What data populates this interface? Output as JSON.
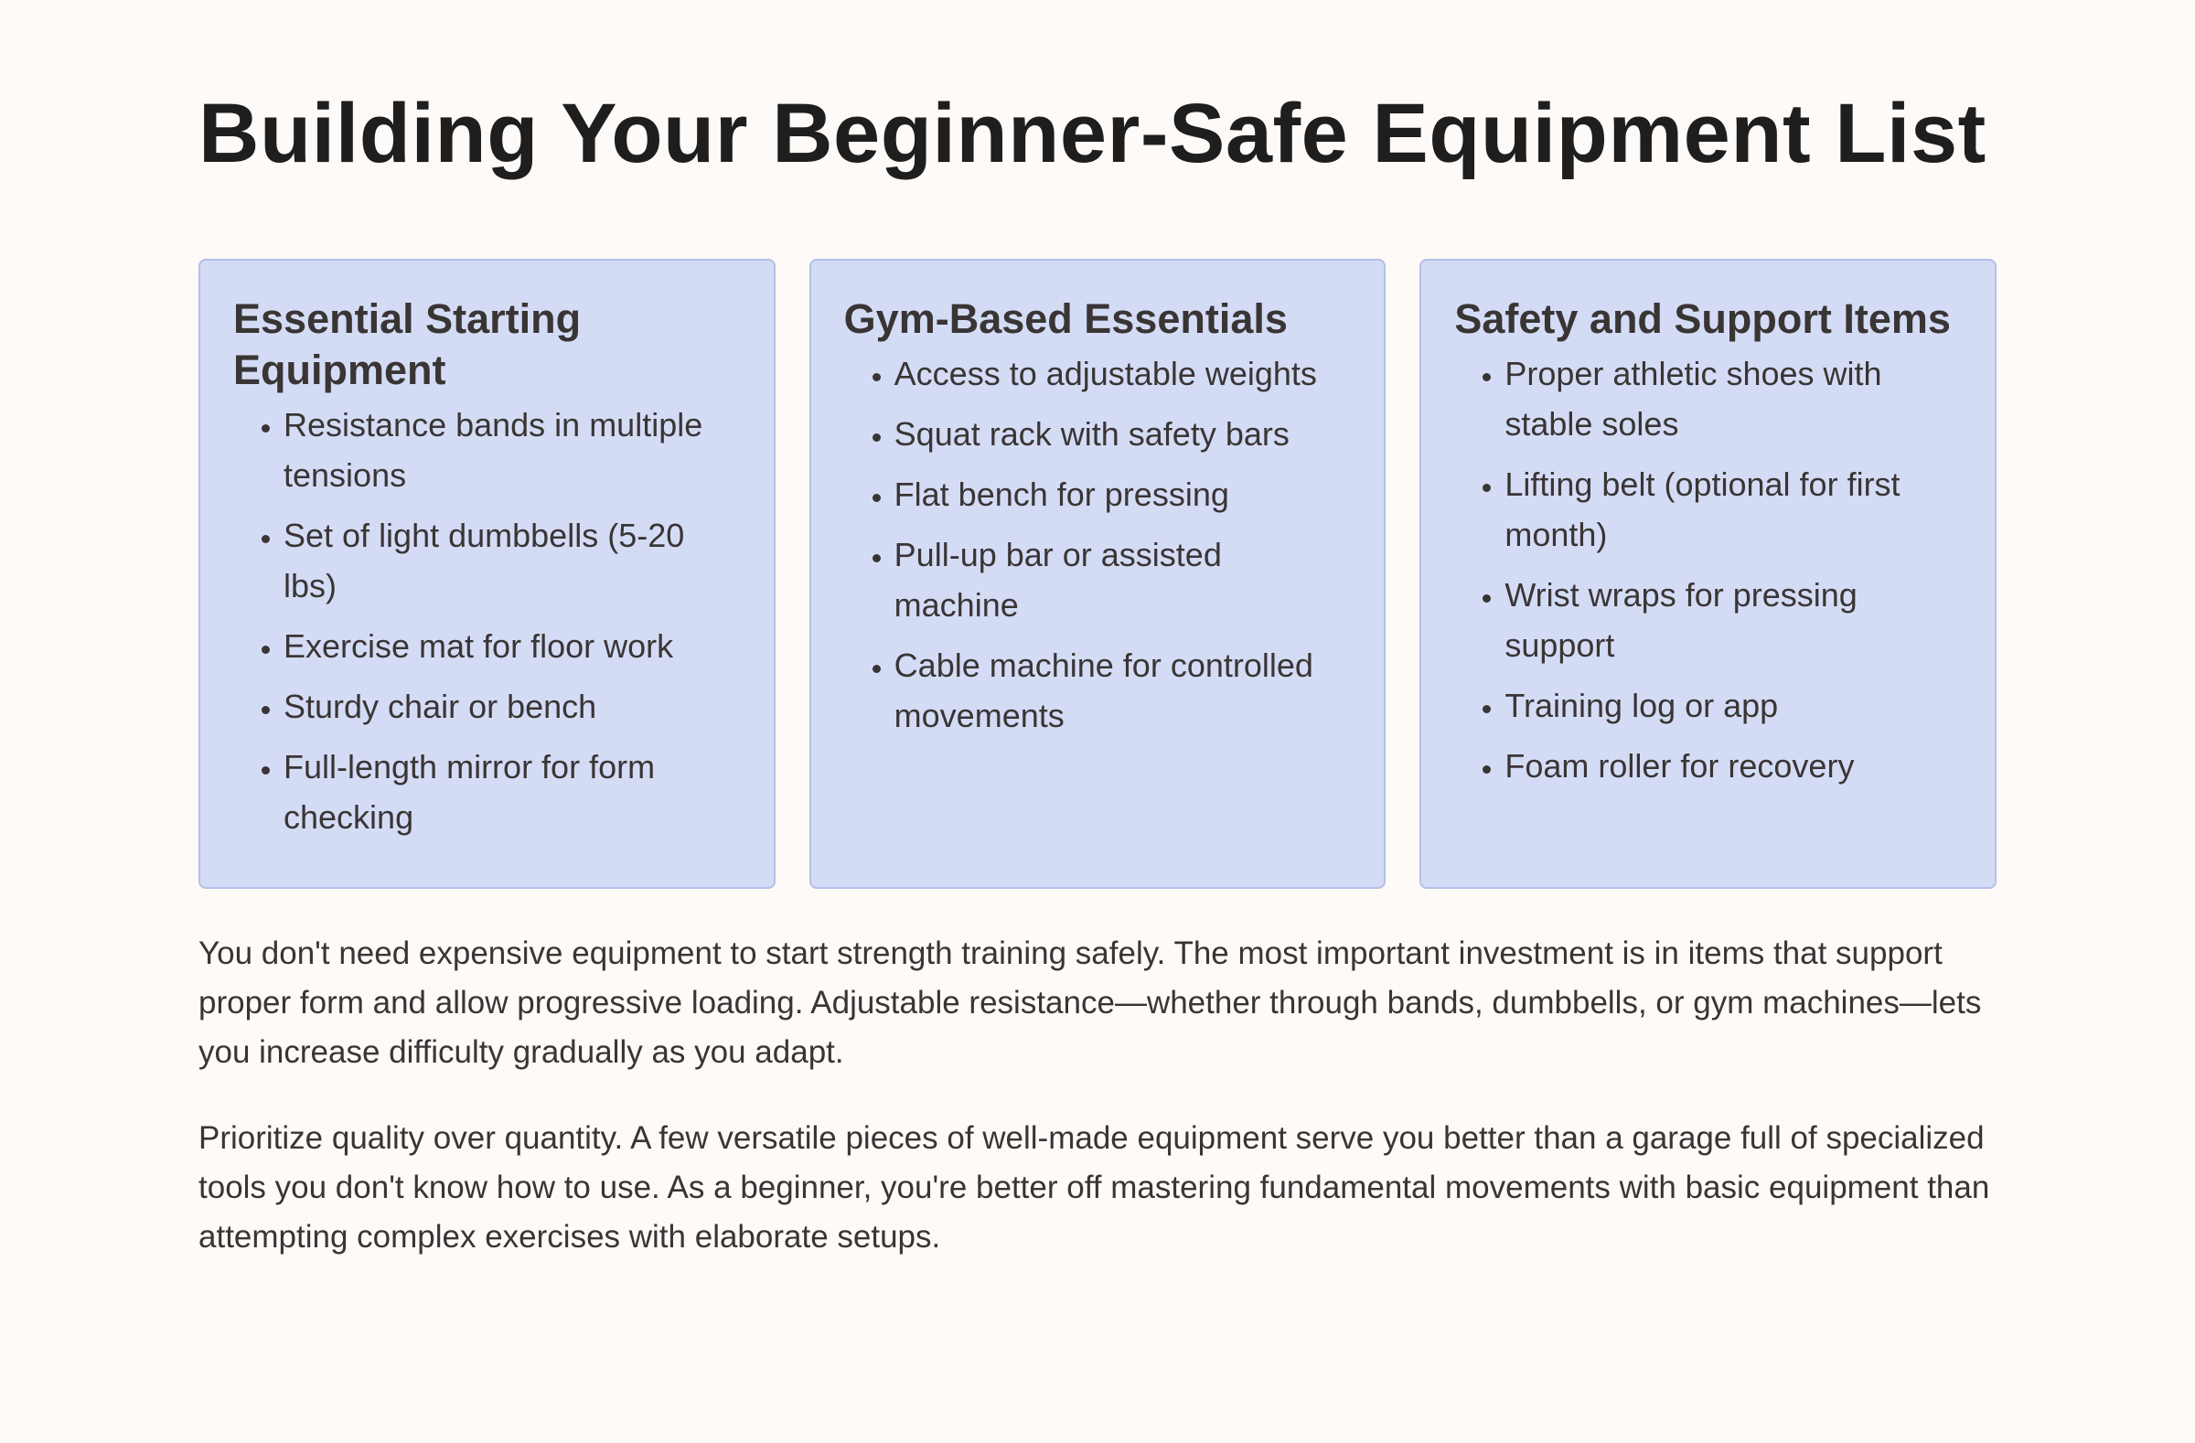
{
  "title": "Building Your Beginner-Safe Equipment List",
  "cards": [
    {
      "heading": "Essential Starting Equipment",
      "items": [
        "Resistance bands in multiple tensions",
        "Set of light dumbbells (5-20 lbs)",
        "Exercise mat for floor work",
        "Sturdy chair or bench",
        "Full-length mirror for form checking"
      ]
    },
    {
      "heading": "Gym-Based Essentials",
      "items": [
        "Access to adjustable weights",
        "Squat rack with safety bars",
        "Flat bench for pressing",
        "Pull-up bar or assisted machine",
        "Cable machine for controlled movements"
      ]
    },
    {
      "heading": "Safety and Support Items",
      "items": [
        "Proper athletic shoes with stable soles",
        "Lifting belt (optional for first month)",
        "Wrist wraps for pressing support",
        "Training log or app",
        "Foam roller for recovery"
      ]
    }
  ],
  "paragraphs": [
    "You don't need expensive equipment to start strength training safely. The most important investment is in items that support proper form and allow progressive loading. Adjustable resistance—whether through bands, dumbbells, or gym machines—lets you increase difficulty gradually as you adapt.",
    "Prioritize quality over quantity. A few versatile pieces of well-made equipment serve you better than a garage full of specialized tools you don't know how to use. As a beginner, you're better off mastering fundamental movements with basic equipment than attempting complex exercises with elaborate setups."
  ],
  "colors": {
    "background": "#fdfaf8",
    "card": "#d4dcf5",
    "card_border": "#b4bfe6",
    "text": "#3a3535"
  }
}
